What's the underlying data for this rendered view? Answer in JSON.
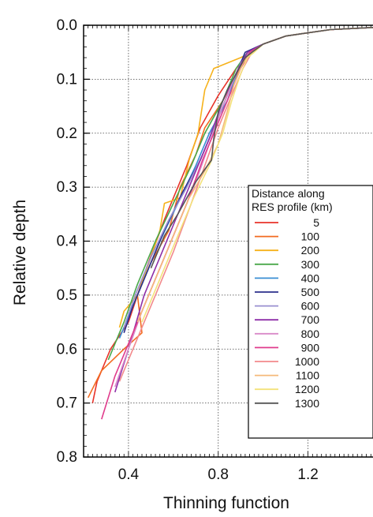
{
  "chart_data": {
    "type": "line",
    "xlabel": "Thinning function",
    "ylabel": "Relative depth",
    "xlim": [
      0.2,
      1.5
    ],
    "ylim": [
      0.8,
      0.0
    ],
    "y_inverted": true,
    "x_ticks": [
      0.4,
      0.8,
      1.2
    ],
    "x_tick_labels": [
      "0.4",
      "0.8",
      "1.2"
    ],
    "y_ticks": [
      0.0,
      0.1,
      0.2,
      0.3,
      0.4,
      0.5,
      0.6,
      0.7,
      0.8
    ],
    "y_tick_labels": [
      "0.0",
      "0.1",
      "0.2",
      "0.3",
      "0.4",
      "0.5",
      "0.6",
      "0.7",
      "0.8"
    ],
    "grid": true,
    "legend": {
      "title_lines": [
        "Distance along",
        "RES profile (km)"
      ],
      "placement": "lower-right"
    },
    "series": [
      {
        "name": "5",
        "color": "#e8332a",
        "points": [
          [
            0.24,
            0.7
          ],
          [
            0.26,
            0.66
          ],
          [
            0.32,
            0.6
          ],
          [
            0.4,
            0.55
          ],
          [
            0.48,
            0.45
          ],
          [
            0.56,
            0.36
          ],
          [
            0.66,
            0.26
          ],
          [
            0.72,
            0.19
          ],
          [
            0.8,
            0.13
          ],
          [
            0.88,
            0.08
          ],
          [
            0.94,
            0.05
          ],
          [
            1.0,
            0.035
          ],
          [
            1.1,
            0.02
          ],
          [
            1.3,
            0.008
          ],
          [
            1.5,
            0.004
          ]
        ]
      },
      {
        "name": "100",
        "color": "#f26b21",
        "points": [
          [
            0.22,
            0.69
          ],
          [
            0.28,
            0.64
          ],
          [
            0.38,
            0.6
          ],
          [
            0.46,
            0.57
          ],
          [
            0.44,
            0.5
          ],
          [
            0.5,
            0.44
          ],
          [
            0.58,
            0.38
          ],
          [
            0.63,
            0.3
          ],
          [
            0.7,
            0.24
          ],
          [
            0.74,
            0.19
          ],
          [
            0.82,
            0.14
          ],
          [
            0.9,
            0.08
          ],
          [
            0.94,
            0.05
          ],
          [
            1.0,
            0.035
          ],
          [
            1.1,
            0.02
          ],
          [
            1.3,
            0.008
          ],
          [
            1.5,
            0.004
          ]
        ]
      },
      {
        "name": "200",
        "color": "#f6b21b",
        "points": [
          [
            0.36,
            0.56
          ],
          [
            0.38,
            0.53
          ],
          [
            0.44,
            0.5
          ],
          [
            0.5,
            0.43
          ],
          [
            0.54,
            0.38
          ],
          [
            0.56,
            0.33
          ],
          [
            0.63,
            0.32
          ],
          [
            0.67,
            0.25
          ],
          [
            0.71,
            0.2
          ],
          [
            0.74,
            0.12
          ],
          [
            0.78,
            0.08
          ],
          [
            0.84,
            0.07
          ],
          [
            0.9,
            0.06
          ],
          [
            0.95,
            0.05
          ],
          [
            1.0,
            0.035
          ],
          [
            1.1,
            0.02
          ],
          [
            1.3,
            0.008
          ],
          [
            1.5,
            0.004
          ]
        ]
      },
      {
        "name": "300",
        "color": "#4aa84a",
        "points": [
          [
            0.31,
            0.62
          ],
          [
            0.34,
            0.59
          ],
          [
            0.38,
            0.55
          ],
          [
            0.44,
            0.48
          ],
          [
            0.52,
            0.4
          ],
          [
            0.6,
            0.33
          ],
          [
            0.68,
            0.26
          ],
          [
            0.74,
            0.2
          ],
          [
            0.82,
            0.14
          ],
          [
            0.88,
            0.08
          ],
          [
            0.93,
            0.05
          ],
          [
            1.0,
            0.035
          ],
          [
            1.1,
            0.02
          ],
          [
            1.3,
            0.008
          ],
          [
            1.5,
            0.004
          ]
        ]
      },
      {
        "name": "400",
        "color": "#3c8fd4",
        "points": [
          [
            0.36,
            0.58
          ],
          [
            0.4,
            0.54
          ],
          [
            0.46,
            0.48
          ],
          [
            0.54,
            0.4
          ],
          [
            0.62,
            0.33
          ],
          [
            0.7,
            0.26
          ],
          [
            0.76,
            0.2
          ],
          [
            0.84,
            0.14
          ],
          [
            0.89,
            0.08
          ],
          [
            0.93,
            0.05
          ],
          [
            1.0,
            0.035
          ],
          [
            1.1,
            0.02
          ],
          [
            1.3,
            0.008
          ],
          [
            1.5,
            0.004
          ]
        ]
      },
      {
        "name": "500",
        "color": "#2c2f8c",
        "points": [
          [
            0.38,
            0.57
          ],
          [
            0.42,
            0.52
          ],
          [
            0.48,
            0.46
          ],
          [
            0.56,
            0.38
          ],
          [
            0.64,
            0.31
          ],
          [
            0.72,
            0.25
          ],
          [
            0.78,
            0.19
          ],
          [
            0.84,
            0.13
          ],
          [
            0.89,
            0.08
          ],
          [
            0.92,
            0.05
          ],
          [
            1.0,
            0.035
          ],
          [
            1.1,
            0.02
          ],
          [
            1.3,
            0.008
          ],
          [
            1.5,
            0.004
          ]
        ]
      },
      {
        "name": "600",
        "color": "#9a8fd0",
        "points": [
          [
            0.38,
            0.56
          ],
          [
            0.43,
            0.5
          ],
          [
            0.5,
            0.43
          ],
          [
            0.58,
            0.36
          ],
          [
            0.66,
            0.3
          ],
          [
            0.73,
            0.24
          ],
          [
            0.79,
            0.18
          ],
          [
            0.85,
            0.12
          ],
          [
            0.9,
            0.07
          ],
          [
            0.94,
            0.05
          ],
          [
            1.0,
            0.035
          ],
          [
            1.1,
            0.02
          ],
          [
            1.3,
            0.008
          ],
          [
            1.5,
            0.004
          ]
        ]
      },
      {
        "name": "700",
        "color": "#8e2fa8",
        "points": [
          [
            0.34,
            0.68
          ],
          [
            0.4,
            0.6
          ],
          [
            0.47,
            0.5
          ],
          [
            0.55,
            0.42
          ],
          [
            0.63,
            0.34
          ],
          [
            0.7,
            0.27
          ],
          [
            0.76,
            0.21
          ],
          [
            0.82,
            0.14
          ],
          [
            0.89,
            0.08
          ],
          [
            0.93,
            0.05
          ],
          [
            1.0,
            0.035
          ],
          [
            1.1,
            0.02
          ],
          [
            1.3,
            0.008
          ],
          [
            1.5,
            0.004
          ]
        ]
      },
      {
        "name": "800",
        "color": "#d98ac8",
        "points": [
          [
            0.34,
            0.67
          ],
          [
            0.4,
            0.6
          ],
          [
            0.46,
            0.53
          ],
          [
            0.54,
            0.45
          ],
          [
            0.62,
            0.37
          ],
          [
            0.7,
            0.29
          ],
          [
            0.76,
            0.22
          ],
          [
            0.82,
            0.15
          ],
          [
            0.88,
            0.09
          ],
          [
            0.93,
            0.055
          ],
          [
            1.0,
            0.035
          ],
          [
            1.1,
            0.02
          ],
          [
            1.3,
            0.008
          ],
          [
            1.5,
            0.004
          ]
        ]
      },
      {
        "name": "900",
        "color": "#e03c8c",
        "points": [
          [
            0.28,
            0.73
          ],
          [
            0.34,
            0.65
          ],
          [
            0.42,
            0.57
          ],
          [
            0.5,
            0.49
          ],
          [
            0.58,
            0.41
          ],
          [
            0.66,
            0.33
          ],
          [
            0.73,
            0.25
          ],
          [
            0.78,
            0.2
          ],
          [
            0.84,
            0.14
          ],
          [
            0.9,
            0.08
          ],
          [
            0.94,
            0.05
          ],
          [
            1.0,
            0.035
          ],
          [
            1.1,
            0.02
          ],
          [
            1.3,
            0.008
          ],
          [
            1.5,
            0.004
          ]
        ]
      },
      {
        "name": "1000",
        "color": "#f28a8c",
        "points": [
          [
            0.36,
            0.66
          ],
          [
            0.44,
            0.58
          ],
          [
            0.52,
            0.5
          ],
          [
            0.6,
            0.42
          ],
          [
            0.68,
            0.33
          ],
          [
            0.74,
            0.26
          ],
          [
            0.8,
            0.19
          ],
          [
            0.86,
            0.13
          ],
          [
            0.91,
            0.08
          ],
          [
            0.95,
            0.05
          ],
          [
            1.0,
            0.035
          ],
          [
            1.1,
            0.02
          ],
          [
            1.3,
            0.008
          ],
          [
            1.5,
            0.004
          ]
        ]
      },
      {
        "name": "1100",
        "color": "#f5b97a",
        "points": [
          [
            0.44,
            0.55
          ],
          [
            0.52,
            0.47
          ],
          [
            0.6,
            0.39
          ],
          [
            0.67,
            0.32
          ],
          [
            0.74,
            0.27
          ],
          [
            0.8,
            0.22
          ],
          [
            0.84,
            0.16
          ],
          [
            0.87,
            0.11
          ],
          [
            0.91,
            0.07
          ],
          [
            0.95,
            0.05
          ],
          [
            1.0,
            0.035
          ],
          [
            1.1,
            0.02
          ],
          [
            1.3,
            0.008
          ],
          [
            1.5,
            0.004
          ]
        ]
      },
      {
        "name": "1200",
        "color": "#f3e27a",
        "points": [
          [
            0.46,
            0.55
          ],
          [
            0.54,
            0.47
          ],
          [
            0.62,
            0.39
          ],
          [
            0.69,
            0.32
          ],
          [
            0.76,
            0.26
          ],
          [
            0.82,
            0.2
          ],
          [
            0.86,
            0.14
          ],
          [
            0.9,
            0.09
          ],
          [
            0.93,
            0.06
          ],
          [
            0.96,
            0.05
          ],
          [
            1.0,
            0.035
          ],
          [
            1.1,
            0.02
          ],
          [
            1.3,
            0.008
          ],
          [
            1.5,
            0.004
          ]
        ]
      },
      {
        "name": "1300",
        "color": "#555555",
        "points": [
          [
            0.5,
            0.45
          ],
          [
            0.56,
            0.39
          ],
          [
            0.62,
            0.35
          ],
          [
            0.7,
            0.29
          ],
          [
            0.77,
            0.25
          ],
          [
            0.78,
            0.21
          ],
          [
            0.8,
            0.16
          ],
          [
            0.84,
            0.12
          ],
          [
            0.88,
            0.09
          ],
          [
            0.92,
            0.06
          ],
          [
            0.95,
            0.05
          ],
          [
            1.0,
            0.035
          ],
          [
            1.1,
            0.02
          ],
          [
            1.3,
            0.008
          ],
          [
            1.5,
            0.004
          ]
        ]
      }
    ]
  }
}
